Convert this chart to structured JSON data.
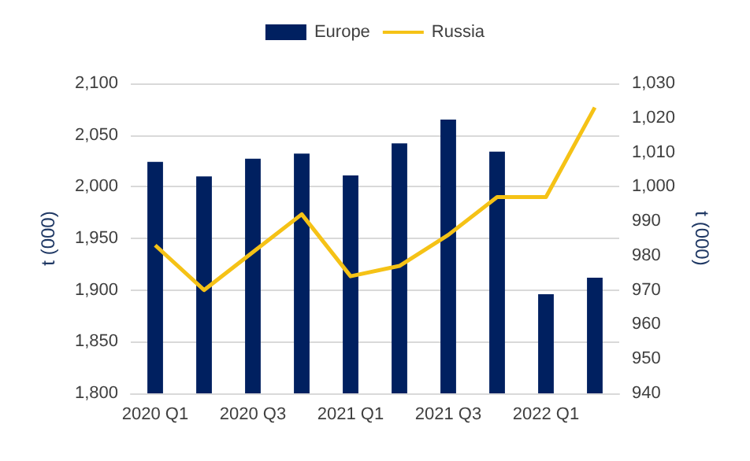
{
  "chart_data": {
    "type": "bar",
    "ylabel": "t (000)",
    "y2label": "t (000)",
    "categories": [
      "2020 Q1",
      null,
      "2020 Q3",
      null,
      "2021 Q1",
      null,
      "2021 Q3",
      null,
      "2022 Q1",
      null
    ],
    "series": [
      {
        "name": "Europe",
        "color": "#002060",
        "values": [
          2024,
          2010,
          2027,
          2032,
          2011,
          2042,
          2065,
          2034,
          1896,
          1912
        ]
      },
      {
        "name": "Russia",
        "type": "line",
        "axis": "y2",
        "color": "#f5c216",
        "values": [
          983,
          970,
          981,
          992,
          974,
          977,
          986,
          997,
          997,
          1023
        ]
      }
    ],
    "ylim": [
      1800,
      2100
    ],
    "yticks": [
      {
        "value": 1800,
        "label": "1,800"
      },
      {
        "value": 1850,
        "label": "1,850"
      },
      {
        "value": 1900,
        "label": "1,900"
      },
      {
        "value": 1950,
        "label": "1,950"
      },
      {
        "value": 2000,
        "label": "2,000"
      },
      {
        "value": 2050,
        "label": "2,050"
      },
      {
        "value": 2100,
        "label": "2,100"
      }
    ],
    "y2lim": [
      940,
      1030
    ],
    "y2ticks": [
      940,
      950,
      960,
      970,
      980,
      990,
      {
        "value": 1000,
        "label": "1,000"
      },
      {
        "value": 1010,
        "label": "1,010"
      },
      {
        "value": 1020,
        "label": "1,020"
      },
      {
        "value": 1030,
        "label": "1,030"
      }
    ],
    "grid": "y",
    "legend": "top",
    "marker": "none",
    "line_style": "solid"
  }
}
